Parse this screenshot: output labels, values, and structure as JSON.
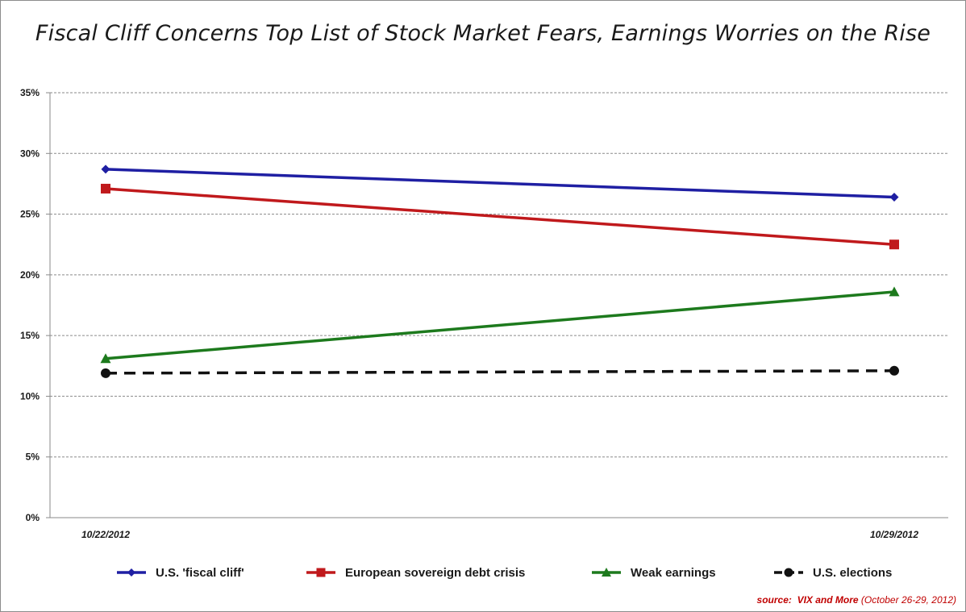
{
  "chart_data": {
    "type": "line",
    "title": "Fiscal Cliff Concerns Top List of Stock Market Fears, Earnings Worries on the Rise",
    "categories": [
      "10/22/2012",
      "10/29/2012"
    ],
    "y_ticks": [
      "0%",
      "5%",
      "10%",
      "15%",
      "20%",
      "25%",
      "30%",
      "35%"
    ],
    "ylim": [
      0,
      35
    ],
    "ytick_step": 5,
    "grid": "horizontal-dashed",
    "legend_position": "bottom",
    "series": [
      {
        "name": "U.S. 'fiscal cliff'",
        "values": [
          28.7,
          26.4
        ],
        "color": "#1f1fa3",
        "marker": "diamond",
        "dash": "solid"
      },
      {
        "name": "European sovereign debt crisis",
        "values": [
          27.1,
          22.5
        ],
        "color": "#c0191c",
        "marker": "square",
        "dash": "solid"
      },
      {
        "name": "Weak earnings",
        "values": [
          13.1,
          18.6
        ],
        "color": "#1d7a1d",
        "marker": "triangle",
        "dash": "solid"
      },
      {
        "name": "U.S. elections",
        "values": [
          11.9,
          12.1
        ],
        "color": "#111111",
        "marker": "circle",
        "dash": "dashed"
      }
    ]
  },
  "source": {
    "label": "source:",
    "name": "VIX and More",
    "detail": "(October 26-29, 2012)"
  }
}
